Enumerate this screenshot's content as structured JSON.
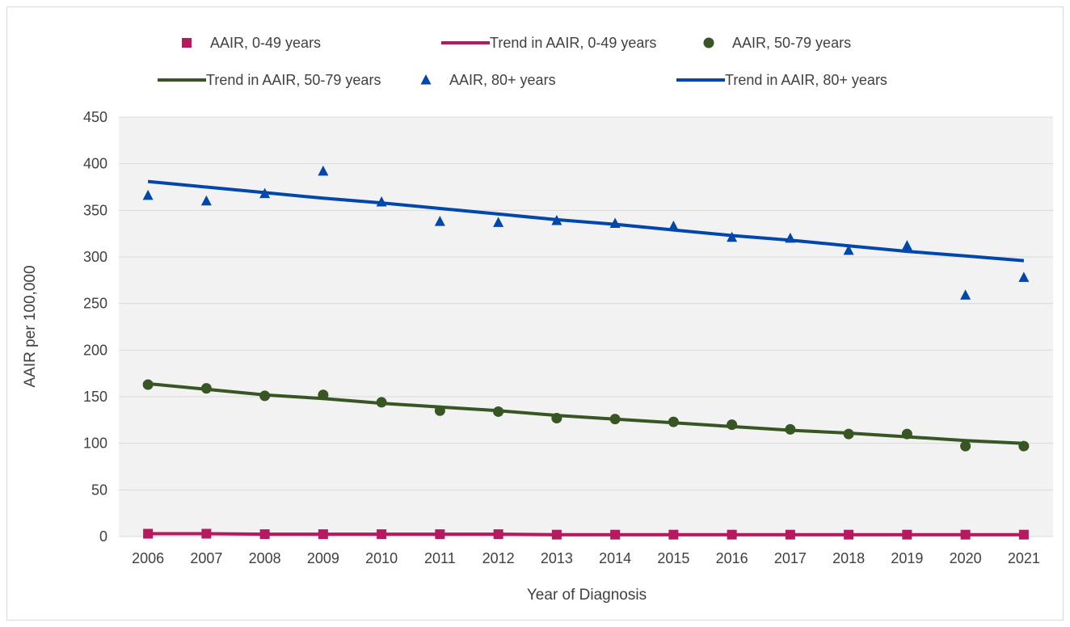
{
  "chart_data": {
    "type": "scatter",
    "xlabel": "Year of Diagnosis",
    "ylabel": "AAIR per 100,000",
    "ylim": [
      0,
      450
    ],
    "yticks": [
      "0",
      "50",
      "100",
      "150",
      "200",
      "250",
      "300",
      "350",
      "400",
      "450"
    ],
    "grid": true,
    "legend_position": "top",
    "categories": [
      "2006",
      "2007",
      "2008",
      "2009",
      "2010",
      "2011",
      "2012",
      "2013",
      "2014",
      "2015",
      "2016",
      "2017",
      "2018",
      "2019",
      "2020",
      "2021"
    ],
    "series": [
      {
        "name": "AAIR, 0-49 years",
        "kind": "points",
        "marker": "square",
        "color": "#b5195f",
        "values": [
          3,
          3,
          2.5,
          2.5,
          2.5,
          2.5,
          2.5,
          2,
          2,
          2,
          2,
          2,
          2,
          2,
          2,
          2
        ]
      },
      {
        "name": "Trend in AAIR, 0-49 years",
        "kind": "line",
        "color": "#b5195f",
        "values": [
          3,
          3,
          2.5,
          2.5,
          2.5,
          2.5,
          2.5,
          2,
          2,
          2,
          2,
          2,
          2,
          2,
          2,
          2
        ]
      },
      {
        "name": "AAIR, 50-79 years",
        "kind": "points",
        "marker": "circle",
        "color": "#375623",
        "values": [
          163,
          159,
          151,
          152,
          144,
          135,
          134,
          127,
          126,
          123,
          120,
          115,
          110,
          110,
          97,
          97
        ]
      },
      {
        "name": "Trend in AAIR, 50-79 years",
        "kind": "line",
        "color": "#375623",
        "values": [
          164,
          158,
          152,
          148,
          143,
          139,
          135,
          130,
          126,
          122,
          118,
          114,
          111,
          107,
          103,
          100
        ]
      },
      {
        "name": "AAIR, 80+ years",
        "kind": "points",
        "marker": "triangle",
        "color": "#0047ab",
        "values": [
          366,
          360,
          368,
          392,
          359,
          338,
          337,
          339,
          336,
          333,
          321,
          320,
          307,
          312,
          259,
          278
        ]
      },
      {
        "name": "Trend in AAIR, 80+ years",
        "kind": "line",
        "color": "#0047ab",
        "values": [
          381,
          375,
          369,
          363,
          358,
          352,
          346,
          340,
          335,
          329,
          323,
          318,
          312,
          306,
          301,
          296
        ]
      }
    ]
  }
}
